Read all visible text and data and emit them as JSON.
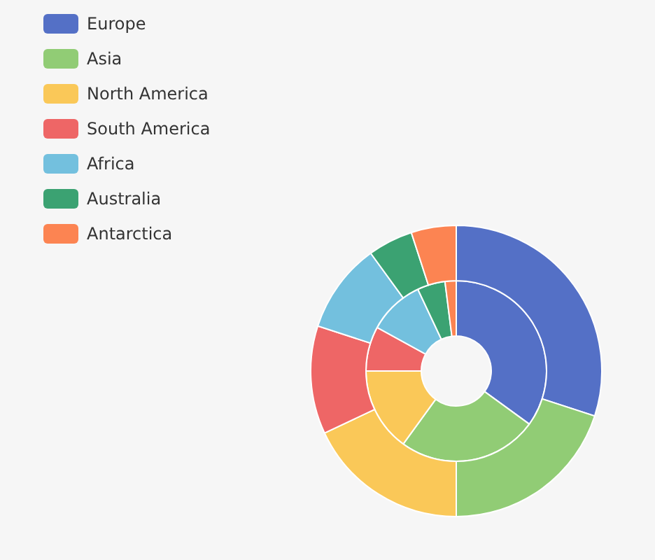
{
  "chart_data": {
    "type": "donut",
    "categories": [
      "Europe",
      "Asia",
      "North America",
      "South America",
      "Africa",
      "Australia",
      "Antarctica"
    ],
    "colors": [
      "#5470c6",
      "#91cc75",
      "#fac858",
      "#ee6666",
      "#73c0de",
      "#3ba272",
      "#fc8452"
    ],
    "series": [
      {
        "values": [
          35,
          25,
          15,
          8,
          10,
          5,
          2
        ]
      },
      {
        "values": [
          30,
          20,
          18,
          12,
          10,
          5,
          5
        ]
      }
    ],
    "legend": "top left"
  }
}
